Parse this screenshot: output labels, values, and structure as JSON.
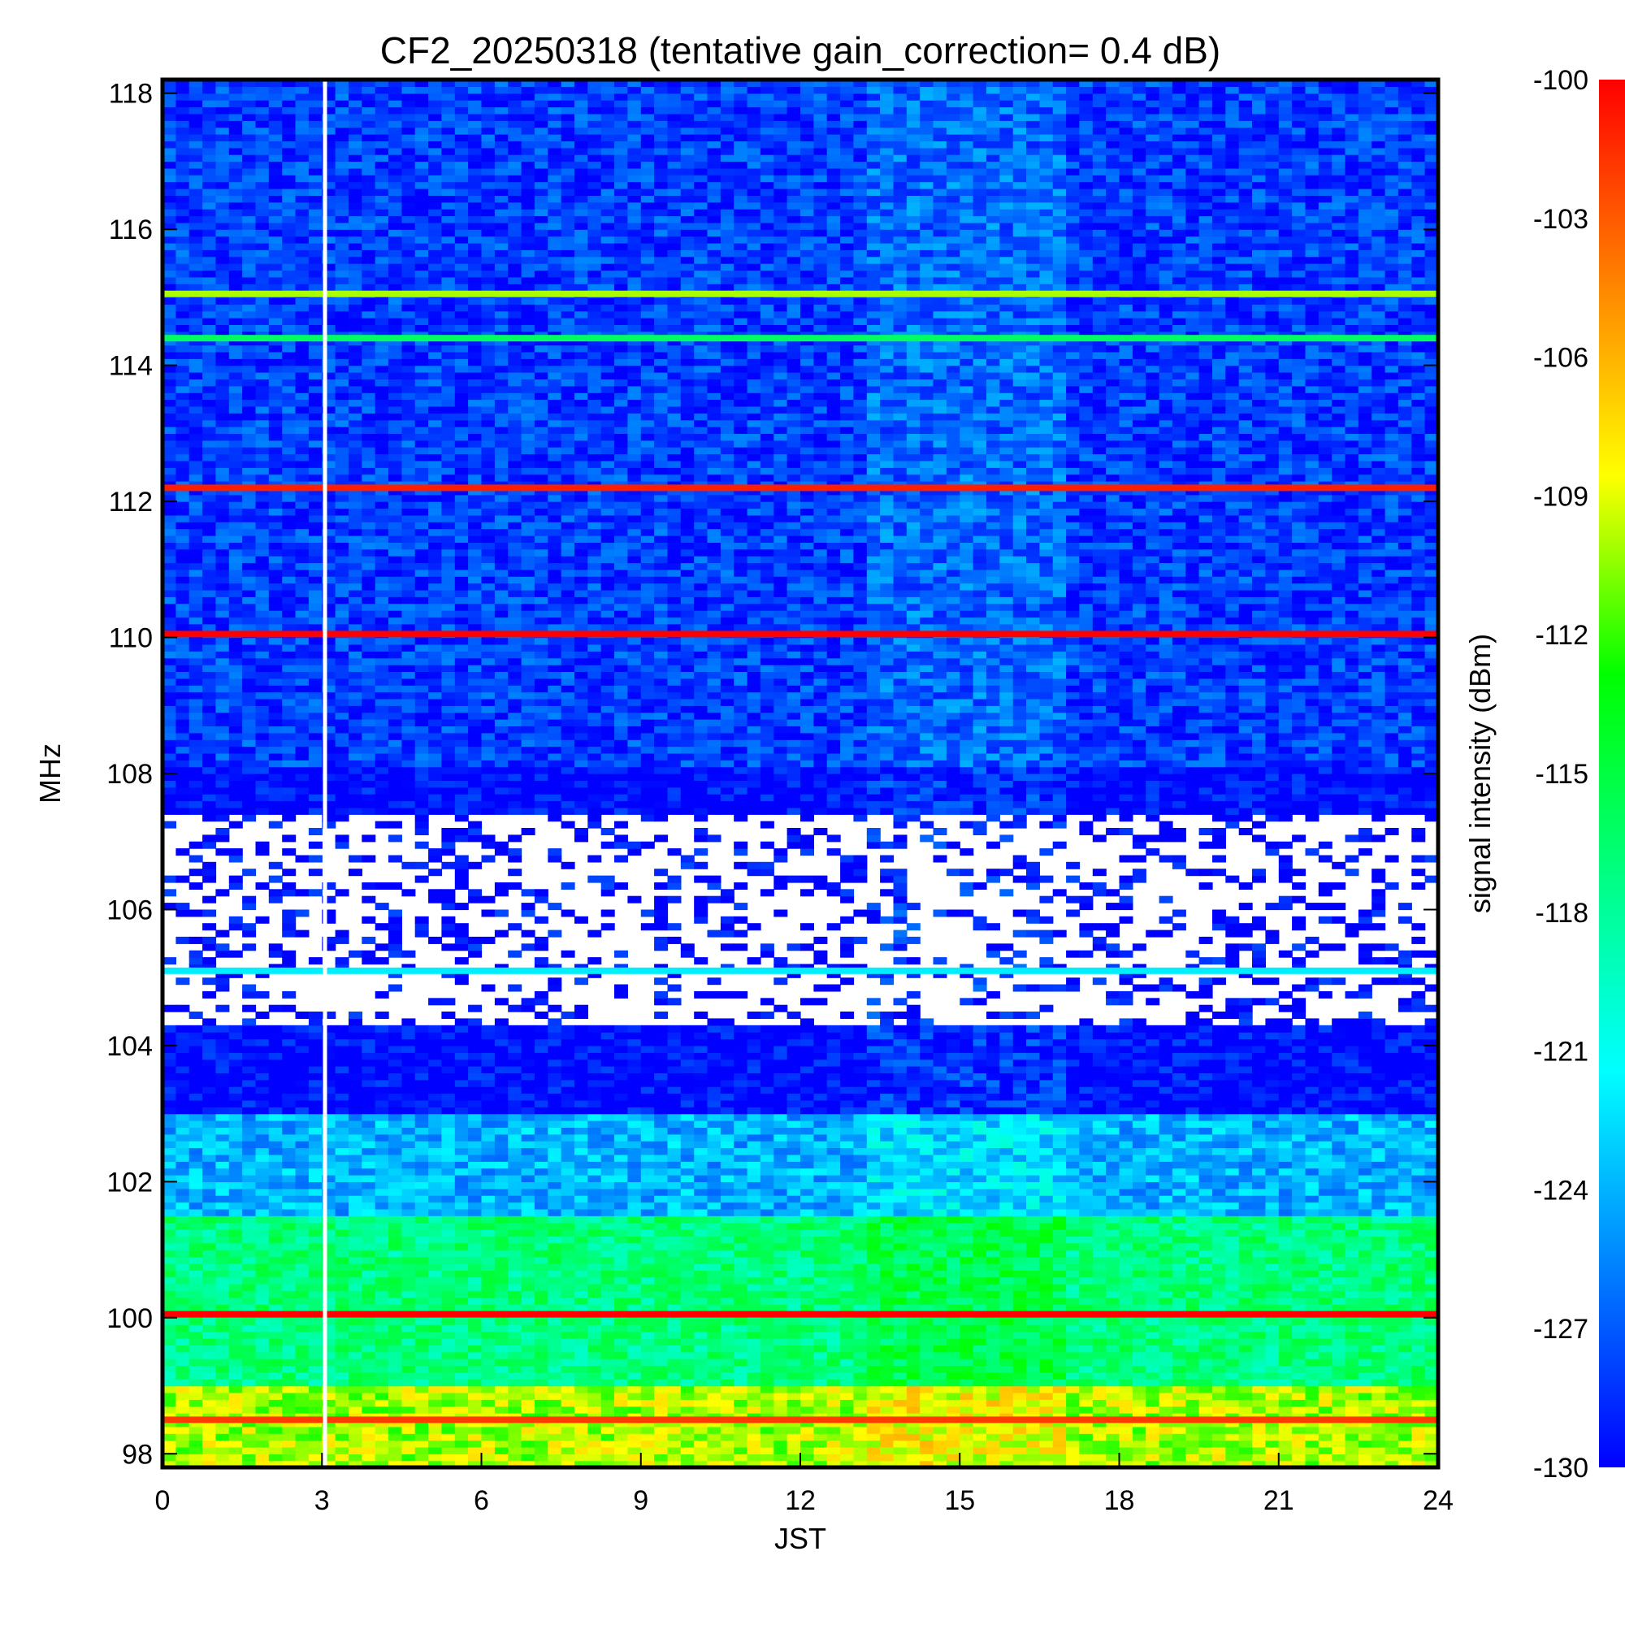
{
  "chart_data": {
    "type": "heatmap",
    "title": "CF2_20250318 (tentative gain_correction=  0.4 dB)",
    "xlabel": "JST",
    "ylabel": "MHz",
    "colorbar_label": "signal intensity (dBm)",
    "xlim": [
      0,
      24
    ],
    "ylim": [
      97.8,
      118.2
    ],
    "x_ticks": [
      0,
      3,
      6,
      9,
      12,
      15,
      18,
      21,
      24
    ],
    "y_ticks": [
      98,
      100,
      102,
      104,
      106,
      108,
      110,
      112,
      114,
      116,
      118
    ],
    "colorbar_range": [
      -130,
      -100
    ],
    "colorbar_ticks": [
      -100,
      -103,
      -106,
      -109,
      -112,
      -115,
      -118,
      -121,
      -124,
      -127,
      -130
    ],
    "colormap": [
      "#0000ff",
      "#0080ff",
      "#00ffff",
      "#00ff80",
      "#00ff00",
      "#ffff00",
      "#ff8000",
      "#ff0000"
    ],
    "data_gap_jst": 3.05,
    "strong_lines": [
      {
        "mhz": 112.2,
        "dbm": -101
      },
      {
        "mhz": 110.05,
        "dbm": -100
      },
      {
        "mhz": 115.05,
        "dbm": -110
      },
      {
        "mhz": 114.4,
        "dbm": -116
      },
      {
        "mhz": 105.1,
        "dbm": -122
      },
      {
        "mhz": 100.05,
        "dbm": -100
      },
      {
        "mhz": 98.5,
        "dbm": -102
      }
    ],
    "background_levels": [
      {
        "mhz_range": [
          108.1,
          118.2
        ],
        "dbm": -128
      },
      {
        "mhz_range": [
          103.0,
          108.1
        ],
        "dbm": -130
      },
      {
        "mhz_range": [
          101.5,
          103.0
        ],
        "dbm": -124
      },
      {
        "mhz_range": [
          99.0,
          101.5
        ],
        "dbm": -117
      },
      {
        "mhz_range": [
          97.8,
          99.0
        ],
        "dbm": -110
      }
    ],
    "blank_region_mhz": [
      104.3,
      107.4
    ]
  }
}
